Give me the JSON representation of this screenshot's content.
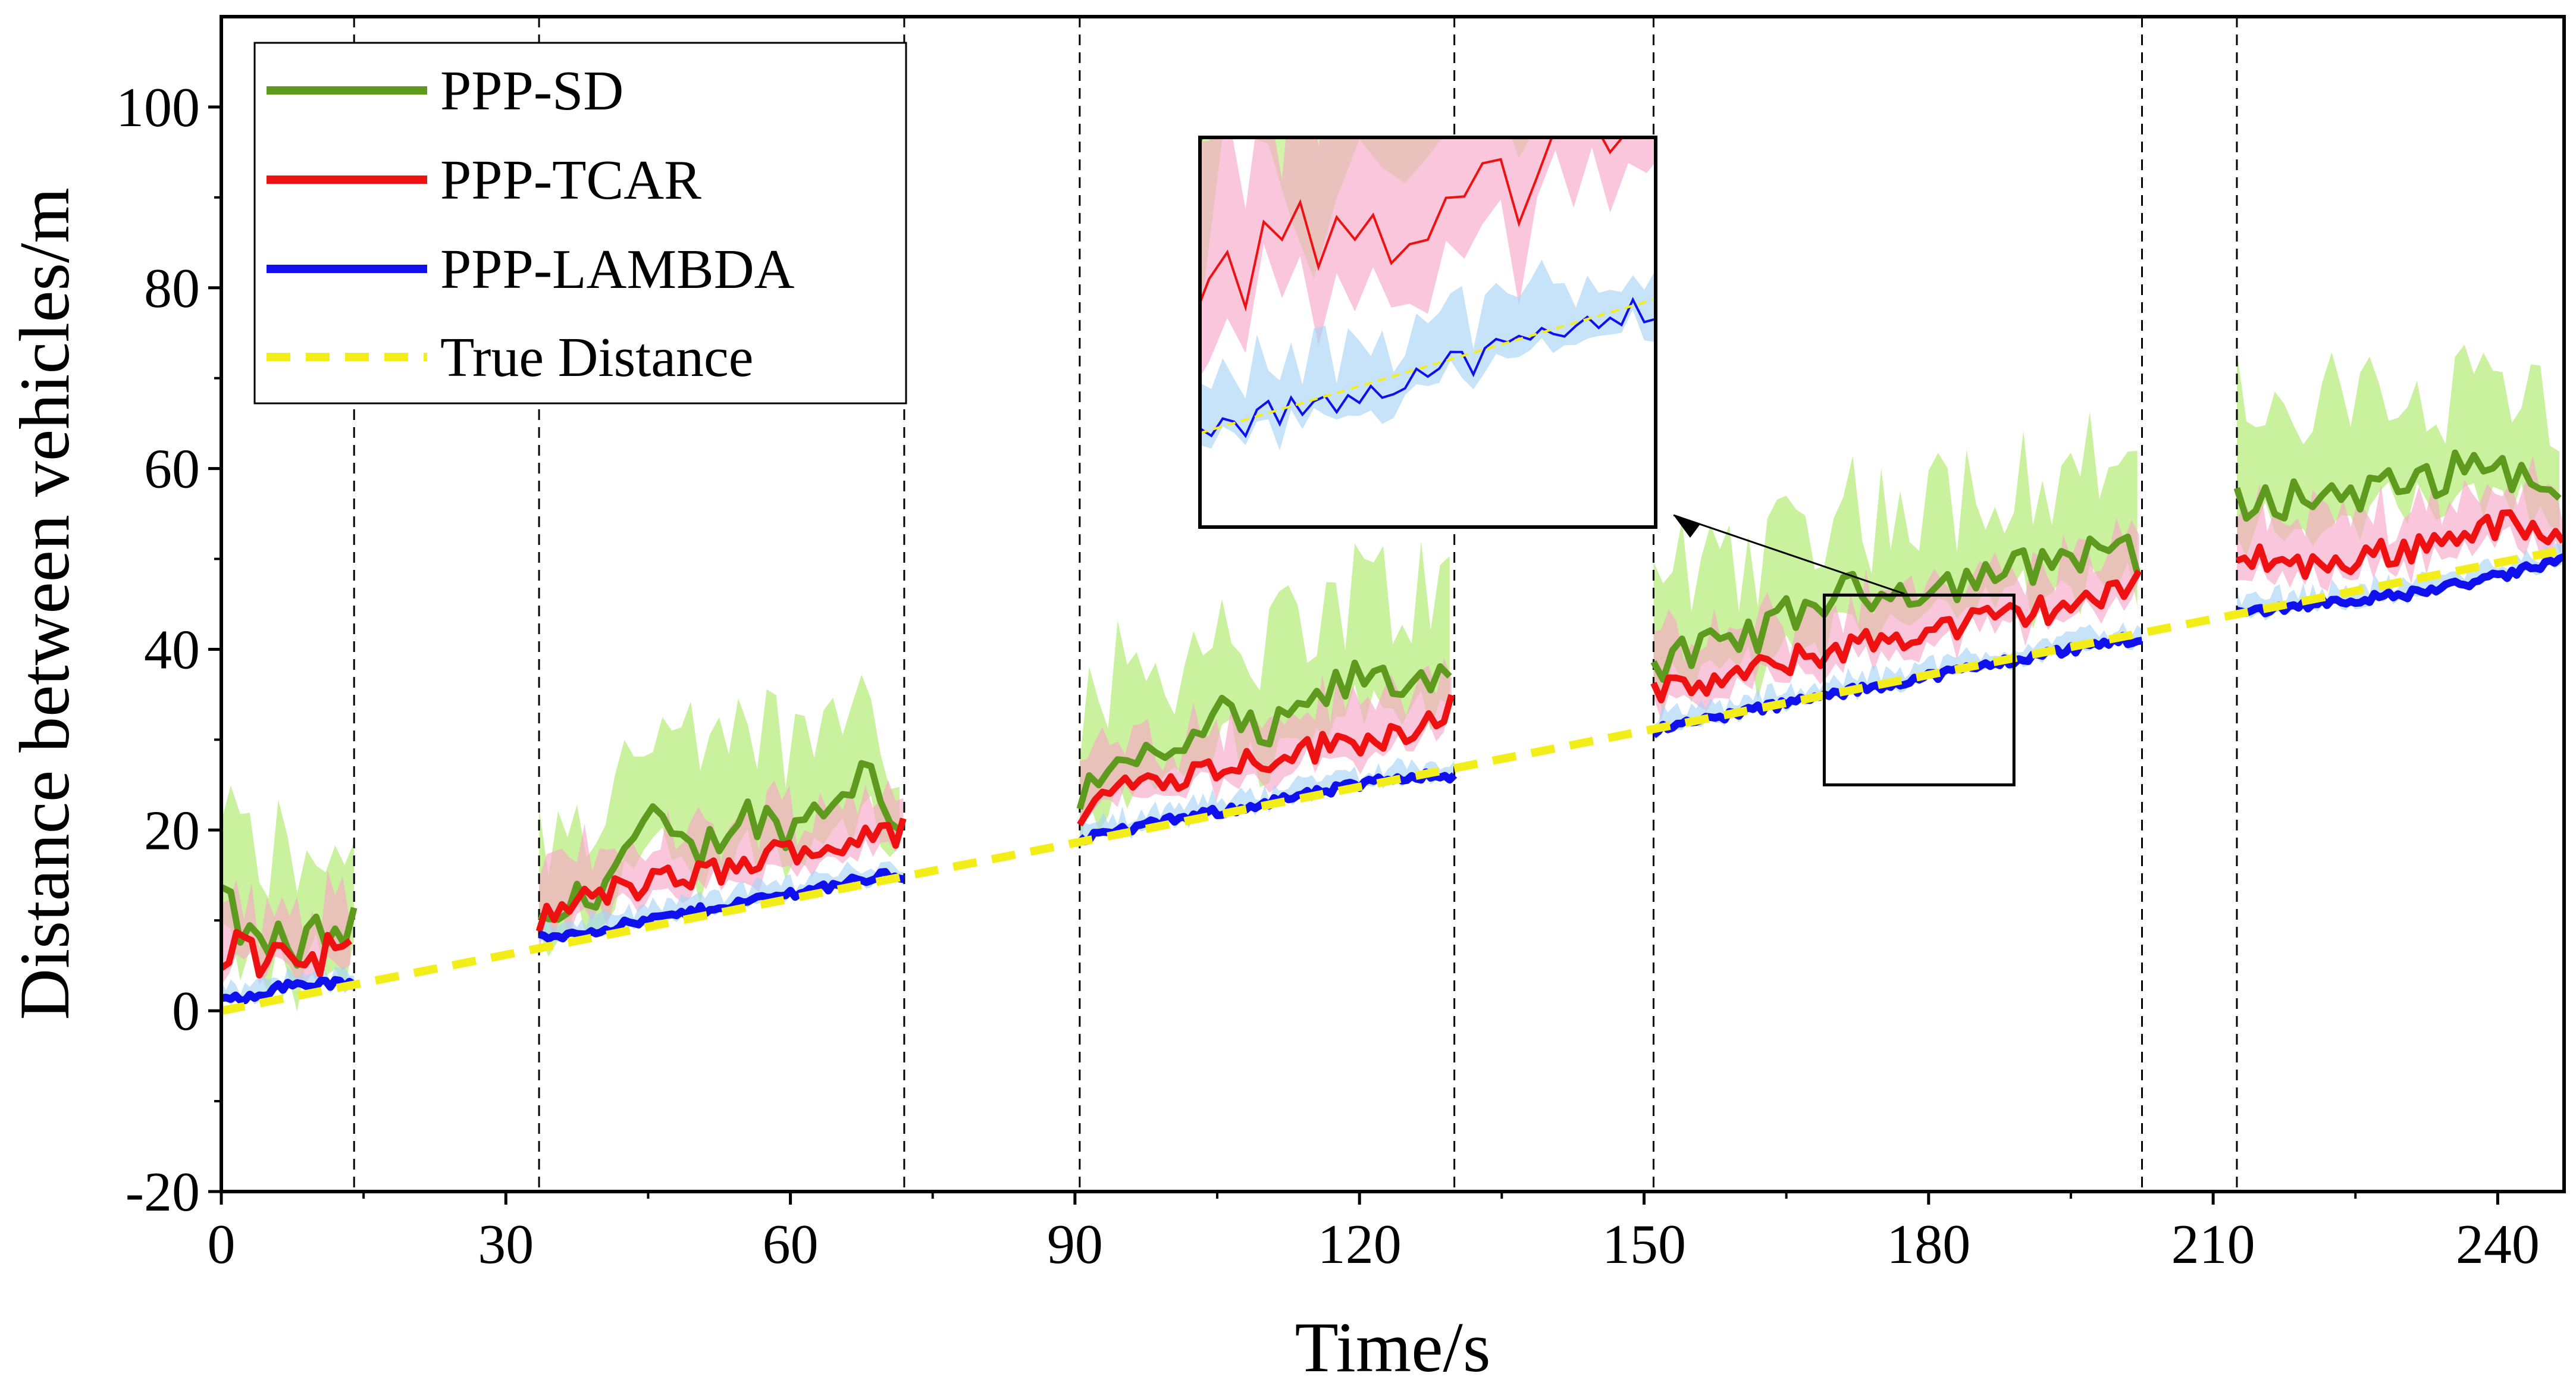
{
  "chart_data": {
    "type": "line",
    "title": "",
    "xlabel": "Time/s",
    "ylabel": "Distance between vehicles/m",
    "xlim": [
      0,
      247
    ],
    "ylim": [
      -20,
      110
    ],
    "xticks": [
      0,
      30,
      60,
      90,
      120,
      150,
      180,
      210,
      240
    ],
    "yticks": [
      -20,
      0,
      20,
      40,
      60,
      80,
      100
    ],
    "grid": false,
    "legend_position": "top-left",
    "segment_boundaries": [
      14,
      33.5,
      72,
      90.5,
      130,
      151,
      202.5,
      212.5
    ],
    "segments": [
      [
        0,
        14
      ],
      [
        33.5,
        72
      ],
      [
        90.5,
        130
      ],
      [
        151,
        202.5
      ],
      [
        212.5,
        247
      ]
    ],
    "series": [
      {
        "name": "PPP-SD",
        "color": "#5e9a1e",
        "band_color": "#b8ec7c",
        "points": [
          [
            0,
            13
          ],
          [
            2,
            9
          ],
          [
            4,
            7
          ],
          [
            6,
            8
          ],
          [
            8,
            6
          ],
          [
            10,
            9
          ],
          [
            12,
            7
          ],
          [
            14,
            10
          ],
          [
            33.5,
            9
          ],
          [
            40,
            14
          ],
          [
            45,
            21
          ],
          [
            50,
            17
          ],
          [
            55,
            22
          ],
          [
            60,
            20
          ],
          [
            65,
            24
          ],
          [
            68,
            27
          ],
          [
            70,
            22
          ],
          [
            72,
            20
          ],
          [
            90.5,
            24
          ],
          [
            95,
            29
          ],
          [
            100,
            27
          ],
          [
            105,
            33
          ],
          [
            110,
            30
          ],
          [
            115,
            34
          ],
          [
            120,
            37
          ],
          [
            125,
            36
          ],
          [
            130,
            39
          ],
          [
            151,
            38
          ],
          [
            160,
            41
          ],
          [
            170,
            46
          ],
          [
            180,
            47
          ],
          [
            190,
            49
          ],
          [
            200,
            52
          ],
          [
            202.5,
            48
          ],
          [
            212.5,
            56
          ],
          [
            220,
            57
          ],
          [
            230,
            58
          ],
          [
            240,
            61
          ],
          [
            247,
            55
          ]
        ]
      },
      {
        "name": "PPP-TCAR",
        "color": "#ee1111",
        "band_color": "#f7a8c8",
        "points": [
          [
            0,
            5
          ],
          [
            2,
            8
          ],
          [
            4,
            5
          ],
          [
            6,
            7
          ],
          [
            8,
            6
          ],
          [
            10,
            5
          ],
          [
            12,
            8
          ],
          [
            14,
            6
          ],
          [
            33.5,
            10
          ],
          [
            40,
            13
          ],
          [
            45,
            14
          ],
          [
            50,
            15
          ],
          [
            55,
            16
          ],
          [
            60,
            18
          ],
          [
            65,
            18
          ],
          [
            68,
            20
          ],
          [
            70,
            19
          ],
          [
            72,
            20
          ],
          [
            90.5,
            22
          ],
          [
            95,
            25
          ],
          [
            100,
            26
          ],
          [
            105,
            27
          ],
          [
            110,
            28
          ],
          [
            115,
            29
          ],
          [
            120,
            30
          ],
          [
            125,
            31
          ],
          [
            130,
            34
          ],
          [
            151,
            35
          ],
          [
            160,
            37
          ],
          [
            170,
            40
          ],
          [
            180,
            42
          ],
          [
            190,
            44
          ],
          [
            200,
            46
          ],
          [
            202.5,
            48
          ],
          [
            212.5,
            51
          ],
          [
            220,
            49
          ],
          [
            230,
            51
          ],
          [
            240,
            54
          ],
          [
            247,
            52
          ]
        ]
      },
      {
        "name": "PPP-LAMBDA",
        "color": "#1010ee",
        "band_color": "#a8d4f7",
        "points": [
          [
            0,
            1
          ],
          [
            4,
            2
          ],
          [
            8,
            3
          ],
          [
            12,
            3
          ],
          [
            14,
            3
          ],
          [
            33.5,
            8
          ],
          [
            40,
            9
          ],
          [
            45,
            10
          ],
          [
            50,
            11
          ],
          [
            55,
            12
          ],
          [
            60,
            13
          ],
          [
            65,
            14
          ],
          [
            70,
            15
          ],
          [
            72,
            15
          ],
          [
            90.5,
            19
          ],
          [
            95,
            20
          ],
          [
            100,
            21
          ],
          [
            105,
            22
          ],
          [
            110,
            23
          ],
          [
            115,
            24
          ],
          [
            120,
            25
          ],
          [
            125,
            26
          ],
          [
            130,
            26
          ],
          [
            151,
            31
          ],
          [
            160,
            33
          ],
          [
            170,
            35
          ],
          [
            180,
            37
          ],
          [
            190,
            39
          ],
          [
            200,
            41
          ],
          [
            202.5,
            41
          ],
          [
            212.5,
            44
          ],
          [
            220,
            45
          ],
          [
            230,
            46
          ],
          [
            240,
            48
          ],
          [
            247,
            50
          ]
        ]
      },
      {
        "name": "True Distance",
        "color": "#f3ee1a",
        "style": "dashed",
        "points": [
          [
            0,
            0
          ],
          [
            247,
            51
          ]
        ]
      }
    ],
    "inset": {
      "zoom_box_x": [
        169,
        189
      ],
      "zoom_box_y": [
        25,
        46
      ]
    }
  }
}
